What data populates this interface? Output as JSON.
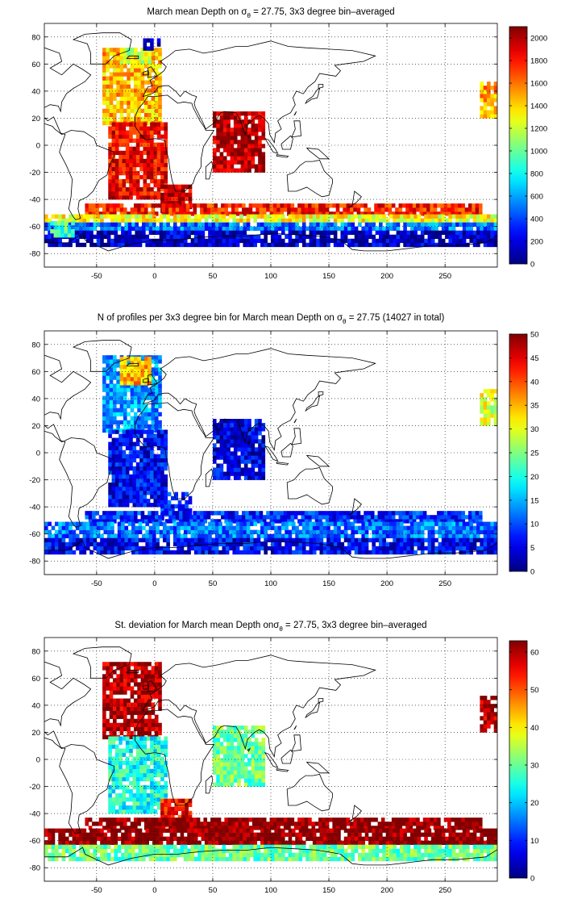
{
  "figure": {
    "panels": [
      {
        "title_parts": [
          "March mean Depth on ",
          "σ",
          "θ",
          " = 27.75, 3x3 degree bin–averaged"
        ],
        "colorbar_ticks": [
          0,
          200,
          400,
          600,
          800,
          1000,
          1200,
          1400,
          1600,
          1800,
          2000
        ]
      },
      {
        "title_parts": [
          "N of profiles per 3x3 degree bin for March mean Depth on ",
          "σ",
          "θ",
          " = 27.75 (14027 in total)"
        ],
        "colorbar_ticks": [
          0,
          5,
          10,
          15,
          20,
          25,
          30,
          35,
          40,
          45,
          50
        ]
      },
      {
        "title_parts": [
          "St. deviation for March mean Depth on",
          "σ",
          "θ",
          " = 27.75, 3x3 degree bin–averaged"
        ],
        "colorbar_ticks": [
          0,
          10,
          20,
          30,
          40,
          50,
          60
        ]
      }
    ],
    "x_tick_labels": [
      -50,
      0,
      50,
      100,
      150,
      200,
      250
    ],
    "y_tick_labels": [
      80,
      60,
      40,
      20,
      0,
      -20,
      -40,
      -60,
      -80
    ]
  },
  "chart_data": [
    {
      "type": "heatmap",
      "title": "March mean Depth on σθ = 27.75, 3x3 degree bin–averaged",
      "xlim": [
        -95,
        295
      ],
      "ylim": [
        -90,
        90
      ],
      "bin_size_deg": 3,
      "clim": [
        0,
        2100
      ],
      "colormap": "jet",
      "grid": true,
      "regions": [
        {
          "lon": [
            -45,
            5
          ],
          "lat": [
            15,
            70
          ],
          "value": 1450
        },
        {
          "lon": [
            -40,
            10
          ],
          "lat": [
            -40,
            15
          ],
          "value": 1850
        },
        {
          "lon": [
            5,
            30
          ],
          "lat": [
            -50,
            -30
          ],
          "value": 1950
        },
        {
          "lon": [
            50,
            95
          ],
          "lat": [
            -20,
            25
          ],
          "value": 2000
        },
        {
          "lon": [
            -60,
            280
          ],
          "lat": [
            -52,
            -44
          ],
          "value": 1800
        },
        {
          "lon": [
            -95,
            295
          ],
          "lat": [
            -57,
            -52
          ],
          "value": 1300
        },
        {
          "lon": [
            -95,
            295
          ],
          "lat": [
            -63,
            -57
          ],
          "value": 500
        },
        {
          "lon": [
            -95,
            295
          ],
          "lat": [
            -75,
            -63
          ],
          "value": 150
        },
        {
          "lon": [
            -90,
            -70
          ],
          "lat": [
            -68,
            -58
          ],
          "value": 900
        },
        {
          "lon": [
            -30,
            -5
          ],
          "lat": [
            60,
            70
          ],
          "value": 1200
        },
        {
          "lon": [
            -10,
            5
          ],
          "lat": [
            70,
            78
          ],
          "value": 150
        },
        {
          "lon": [
            280,
            295
          ],
          "lat": [
            20,
            45
          ],
          "value": 1500
        }
      ]
    },
    {
      "type": "heatmap",
      "title": "N of profiles per 3x3 degree bin for March mean Depth on σθ = 27.75 (14027 in total)",
      "xlim": [
        -95,
        295
      ],
      "ylim": [
        -90,
        90
      ],
      "bin_size_deg": 3,
      "clim": [
        0,
        50
      ],
      "colormap": "jet",
      "grid": true,
      "total_profiles": 14027,
      "regions": [
        {
          "lon": [
            -45,
            5
          ],
          "lat": [
            15,
            70
          ],
          "value": 14
        },
        {
          "lon": [
            -30,
            -5
          ],
          "lat": [
            50,
            70
          ],
          "value": 35
        },
        {
          "lon": [
            -40,
            10
          ],
          "lat": [
            -40,
            15
          ],
          "value": 6
        },
        {
          "lon": [
            5,
            30
          ],
          "lat": [
            -50,
            -30
          ],
          "value": 8
        },
        {
          "lon": [
            50,
            95
          ],
          "lat": [
            -20,
            25
          ],
          "value": 5
        },
        {
          "lon": [
            -60,
            280
          ],
          "lat": [
            -52,
            -44
          ],
          "value": 8
        },
        {
          "lon": [
            -95,
            295
          ],
          "lat": [
            -63,
            -52
          ],
          "value": 12
        },
        {
          "lon": [
            -95,
            295
          ],
          "lat": [
            -75,
            -63
          ],
          "value": 6
        },
        {
          "lon": [
            280,
            295
          ],
          "lat": [
            20,
            45
          ],
          "value": 30
        }
      ]
    },
    {
      "type": "heatmap",
      "title": "St. deviation for March mean Depth onσθ = 27.75, 3x3 degree bin–averaged",
      "xlim": [
        -95,
        295
      ],
      "ylim": [
        -90,
        90
      ],
      "bin_size_deg": 3,
      "clim": [
        0,
        63
      ],
      "colormap": "jet",
      "grid": true,
      "regions": [
        {
          "lon": [
            -45,
            5
          ],
          "lat": [
            15,
            70
          ],
          "value": 60
        },
        {
          "lon": [
            -40,
            10
          ],
          "lat": [
            -40,
            15
          ],
          "value": 25
        },
        {
          "lon": [
            5,
            30
          ],
          "lat": [
            -50,
            -30
          ],
          "value": 55
        },
        {
          "lon": [
            50,
            95
          ],
          "lat": [
            -20,
            25
          ],
          "value": 30
        },
        {
          "lon": [
            -60,
            280
          ],
          "lat": [
            -52,
            -44
          ],
          "value": 63
        },
        {
          "lon": [
            -95,
            295
          ],
          "lat": [
            -63,
            -52
          ],
          "value": 63
        },
        {
          "lon": [
            -95,
            295
          ],
          "lat": [
            -75,
            -63
          ],
          "value": 30
        },
        {
          "lon": [
            280,
            295
          ],
          "lat": [
            20,
            45
          ],
          "value": 60
        }
      ]
    }
  ]
}
